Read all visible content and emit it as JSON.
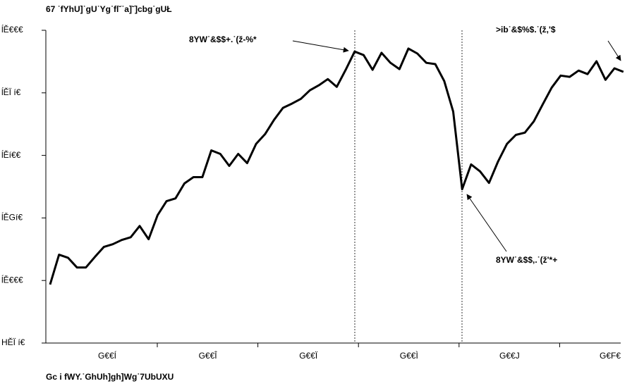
{
  "chart_data": {
    "type": "line",
    "title": "67 ˙fYhU]˙gU˙Yg˙fl˘˙a]˘]cbg˙gUŁ",
    "source": "Gc i fWY.˙GhUh]gh]Wg˙7UbUXU",
    "annotations": [
      "8YW˙&$$+.˙(ž-%*",
      "8YW˙&$$,.˙(ž'*+",
      ">ib˙&$%$.˙(ž,'$"
    ],
    "xtick_labels": [
      "G€€Í",
      "G€€Î",
      "G€€Ï",
      "G€€Ì",
      "G€€J",
      "G€F€"
    ],
    "categories": [
      null,
      null,
      null,
      null,
      null,
      null,
      null,
      null,
      null,
      null,
      null,
      null,
      null,
      null,
      null,
      null,
      null,
      null,
      null,
      null,
      null,
      null,
      null,
      null,
      null,
      null,
      null,
      null,
      null,
      null,
      null,
      null,
      null,
      null,
      null,
      null,
      null,
      null,
      null,
      null,
      null,
      null,
      null,
      null,
      null,
      null,
      null,
      null,
      null,
      null,
      null,
      null,
      null,
      null,
      null,
      null,
      null,
      null,
      null,
      null,
      null,
      null,
      null,
      null,
      null
    ],
    "color": "#000000",
    "values": [
      298400,
      310300,
      309100,
      305200,
      305200,
      309400,
      313400,
      314500,
      316200,
      317300,
      321800,
      316500,
      326100,
      331700,
      332800,
      338800,
      341300,
      341300,
      352000,
      350600,
      345800,
      350600,
      346900,
      354600,
      358500,
      364200,
      369000,
      370700,
      372600,
      376000,
      378000,
      380500,
      377400,
      384200,
      391500,
      390100,
      384200,
      391000,
      387000,
      384500,
      392700,
      390700,
      387000,
      386500,
      379700,
      367500,
      336500,
      346400,
      343600,
      339000,
      347500,
      354600,
      358200,
      359100,
      363600,
      370400,
      377100,
      381900,
      381400,
      383900,
      382500,
      387600,
      380200,
      384800,
      383400
    ],
    "ylim": [
      275000,
      400000
    ],
    "yticks": [
      {
        "value": 275000,
        "label": "HĚÏ í€"
      },
      {
        "value": 300000,
        "label": "ĺĚ€€€"
      },
      {
        "value": 325000,
        "label": "ĺĚGí€"
      },
      {
        "value": 350000,
        "label": "ĺĚí€€"
      },
      {
        "value": 375000,
        "label": "ĺĚÏ í€"
      },
      {
        "value": 400000,
        "label": "ĺĚ€€€"
      }
    ],
    "grid": false
  }
}
